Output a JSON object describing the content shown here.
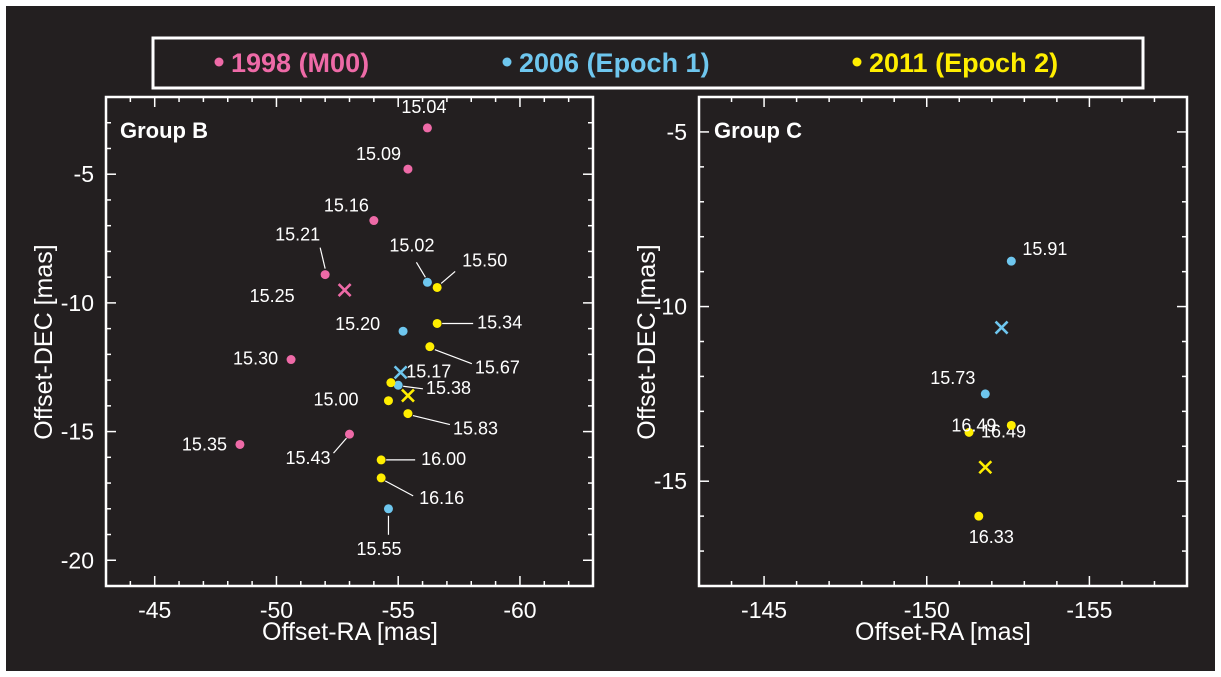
{
  "colors": {
    "background": "#231f20",
    "frame": "#ffffff",
    "s1998": "#ee6aa7",
    "s2006": "#6ec6ee",
    "s2011": "#ffee00"
  },
  "legend": {
    "items": [
      {
        "label": "1998 (M00)",
        "color": "#ee6aa7"
      },
      {
        "label": "2006 (Epoch 1)",
        "color": "#6ec6ee"
      },
      {
        "label": "2011 (Epoch 2)",
        "color": "#ffee00"
      }
    ]
  },
  "chart_data": [
    {
      "type": "scatter",
      "title": "Group B",
      "xlabel": "Offset-RA [mas]",
      "ylabel": "Offset-DEC [mas]",
      "xlim": [
        -43,
        -63
      ],
      "ylim": [
        -21,
        -2
      ],
      "xticks": [
        -45,
        -50,
        -55,
        -60
      ],
      "yticks": [
        -5,
        -10,
        -15,
        -20
      ],
      "series": [
        {
          "name": "1998 (M00)",
          "color": "#ee6aa7",
          "points": [
            {
              "x": -56.2,
              "y": -3.2,
              "label": "15.04"
            },
            {
              "x": -55.4,
              "y": -4.8,
              "label": "15.09"
            },
            {
              "x": -54.0,
              "y": -6.8,
              "label": "15.16"
            },
            {
              "x": -52.0,
              "y": -8.9,
              "label": "15.21"
            },
            {
              "x": -52.8,
              "y": -9.5,
              "label": "15.25",
              "marker": "x"
            },
            {
              "x": -50.6,
              "y": -12.2,
              "label": "15.30"
            },
            {
              "x": -48.5,
              "y": -15.5,
              "label": "15.35"
            },
            {
              "x": -53.0,
              "y": -15.1,
              "label": "15.43"
            }
          ]
        },
        {
          "name": "2006 (Epoch 1)",
          "color": "#6ec6ee",
          "points": [
            {
              "x": -56.2,
              "y": -9.2,
              "label": "15.02"
            },
            {
              "x": -55.2,
              "y": -11.1,
              "label": "15.20"
            },
            {
              "x": -55.1,
              "y": -12.7,
              "marker": "x"
            },
            {
              "x": -55.0,
              "y": -13.2,
              "label": "15.17"
            },
            {
              "x": -54.6,
              "y": -18.0,
              "label": "15.55"
            }
          ]
        },
        {
          "name": "2011 (Epoch 2)",
          "color": "#ffee00",
          "points": [
            {
              "x": -56.6,
              "y": -9.4,
              "label": "15.50"
            },
            {
              "x": -56.6,
              "y": -10.8,
              "label": "15.34"
            },
            {
              "x": -56.3,
              "y": -11.7,
              "label": "15.67"
            },
            {
              "x": -54.7,
              "y": -13.1
            },
            {
              "x": -55.4,
              "y": -13.6,
              "marker": "x"
            },
            {
              "x": -54.6,
              "y": -13.8,
              "label": "15.00"
            },
            {
              "x": -55.4,
              "y": -14.3,
              "label": "15.83"
            },
            {
              "x": -54.3,
              "y": -16.1,
              "label": "16.00"
            },
            {
              "x": -54.3,
              "y": -16.8,
              "label": "16.16"
            }
          ]
        }
      ],
      "annotations": [
        {
          "text": "15.38",
          "color": "#ffffff"
        }
      ]
    },
    {
      "type": "scatter",
      "title": "Group C",
      "xlabel": "Offset-RA [mas]",
      "ylabel": "Offset-DEC [mas]",
      "xlim": [
        -143,
        -158
      ],
      "ylim": [
        -18,
        -4
      ],
      "xticks": [
        -145,
        -150,
        -155
      ],
      "yticks": [
        -5,
        -10,
        -15
      ],
      "series": [
        {
          "name": "2006 (Epoch 1)",
          "color": "#6ec6ee",
          "points": [
            {
              "x": -152.6,
              "y": -8.7,
              "label": "15.91"
            },
            {
              "x": -152.3,
              "y": -10.6,
              "marker": "x"
            },
            {
              "x": -151.8,
              "y": -12.5,
              "label": "15.73"
            }
          ]
        },
        {
          "name": "2011 (Epoch 2)",
          "color": "#ffee00",
          "points": [
            {
              "x": -151.3,
              "y": -13.6,
              "label": "16.49"
            },
            {
              "x": -152.6,
              "y": -13.4,
              "label": "16.49"
            },
            {
              "x": -151.8,
              "y": -14.6,
              "marker": "x"
            },
            {
              "x": -151.6,
              "y": -16.0,
              "label": "16.33"
            }
          ]
        }
      ]
    }
  ]
}
